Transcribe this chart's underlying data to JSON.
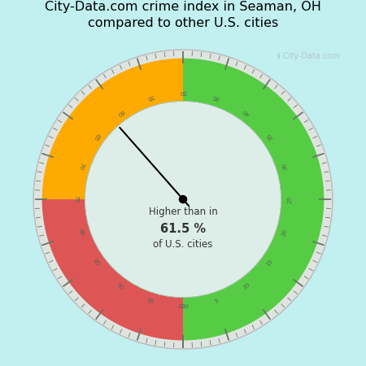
{
  "title": "City-Data.com crime index in Seaman, OH\ncompared to other U.S. cities",
  "title_fontsize": 11.5,
  "background_color": "#c2eff0",
  "inner_bg_color": "#ddeee8",
  "value": 61.5,
  "text_line1": "Higher than in",
  "text_line2": "61.5 %",
  "text_line3": "of U.S. cities",
  "watermark": "ℹ City-Data.com",
  "colors": {
    "green": "#55cc44",
    "orange": "#ffaa00",
    "red": "#dd5555"
  },
  "green_range": [
    0,
    50
  ],
  "orange_range": [
    50,
    75
  ],
  "red_range": [
    75,
    100
  ],
  "outer_border_color": "#d8ddd8",
  "inner_border_color": "#c0ccc0",
  "tick_color": "#667766",
  "label_color": "#556655"
}
